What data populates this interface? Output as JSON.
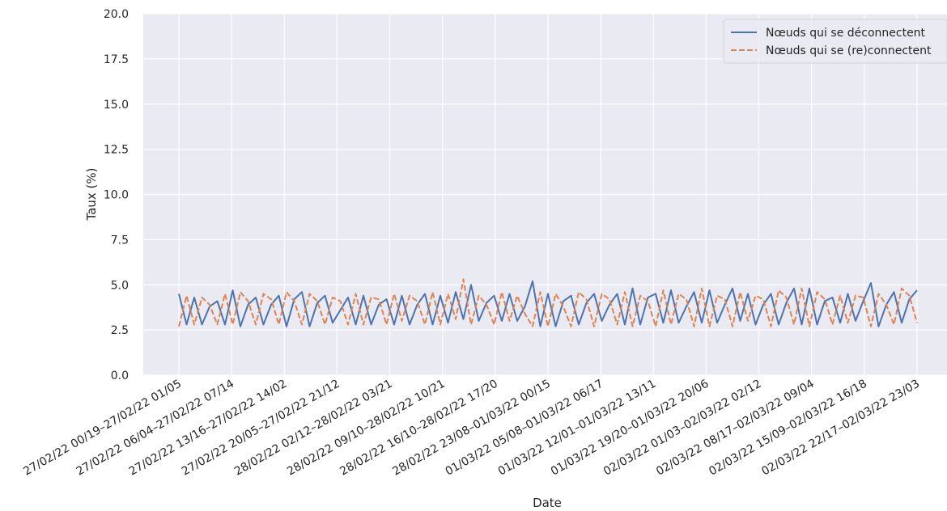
{
  "chart_data": {
    "type": "line",
    "xlabel": "Date",
    "ylabel": "Taux (%)",
    "ylim": [
      0,
      20
    ],
    "yticks": [
      "0.0",
      "2.5",
      "5.0",
      "7.5",
      "10.0",
      "12.5",
      "15.0",
      "17.5",
      "20.0"
    ],
    "grid": true,
    "legend_position": "top-right",
    "x_tick_labels": [
      "27/02/22 00/19–27/02/22 01/05",
      "27/02/22 06/04–27/02/22 07/14",
      "27/02/22 13/16–27/02/22 14/02",
      "27/02/22 20/05–27/02/22 21/12",
      "28/02/22 02/12–28/02/22 03/21",
      "28/02/22 09/10–28/02/22 10/21",
      "28/02/22 16/10–28/02/22 17/20",
      "28/02/22 23/08–01/03/22 00/15",
      "01/03/22 05/08–01/03/22 06/17",
      "01/03/22 12/01–01/03/22 13/11",
      "01/03/22 19/20–01/03/22 20/06",
      "02/03/22 01/03–02/03/22 02/12",
      "02/03/22 08/17–02/03/22 09/04",
      "02/03/22 15/09–02/03/22 16/18",
      "02/03/22 22/17–02/03/22 23/03"
    ],
    "series": [
      {
        "name": "Nœuds qui se déconnectent",
        "color": "#4c72b0",
        "dash": "solid",
        "values": [
          4.5,
          2.8,
          4.3,
          2.8,
          3.8,
          4.1,
          2.8,
          4.7,
          2.7,
          3.9,
          4.3,
          2.8,
          3.9,
          4.4,
          2.7,
          4.2,
          4.6,
          2.7,
          4.0,
          4.4,
          2.9,
          3.6,
          4.3,
          2.8,
          4.4,
          2.8,
          3.9,
          4.2,
          2.8,
          4.4,
          2.8,
          3.9,
          4.5,
          2.8,
          4.4,
          2.9,
          4.6,
          3.1,
          5.0,
          3.0,
          4.0,
          4.4,
          3.0,
          4.5,
          3.0,
          3.8,
          5.2,
          2.7,
          4.5,
          2.7,
          4.1,
          4.4,
          2.8,
          4.0,
          4.5,
          3.0,
          3.9,
          4.5,
          2.8,
          4.8,
          2.8,
          4.3,
          4.5,
          2.9,
          4.7,
          2.9,
          3.8,
          4.6,
          2.9,
          4.7,
          2.9,
          3.9,
          4.8,
          3.0,
          4.5,
          2.8,
          3.9,
          4.5,
          2.8,
          4.0,
          4.8,
          2.8,
          4.8,
          2.8,
          4.1,
          4.3,
          2.9,
          4.5,
          3.0,
          4.1,
          5.1,
          2.7,
          3.9,
          4.6,
          2.9,
          4.2,
          4.7
        ]
      },
      {
        "name": "Nœuds qui se (re)connectent",
        "color": "#dd8452",
        "dash": "dashed",
        "values": [
          2.7,
          4.4,
          2.8,
          4.3,
          3.9,
          2.8,
          4.5,
          2.8,
          4.6,
          4.1,
          2.8,
          4.5,
          4.2,
          2.8,
          4.6,
          4.1,
          2.8,
          4.5,
          4.1,
          2.8,
          4.3,
          4.1,
          2.8,
          4.5,
          2.8,
          4.3,
          4.2,
          2.8,
          4.5,
          3.0,
          4.4,
          4.1,
          2.8,
          4.6,
          2.8,
          4.5,
          3.1,
          5.3,
          2.8,
          4.4,
          3.9,
          2.8,
          4.6,
          3.0,
          4.4,
          3.4,
          2.7,
          4.6,
          2.7,
          4.5,
          3.8,
          2.7,
          4.6,
          4.2,
          2.7,
          4.5,
          4.2,
          2.8,
          4.6,
          2.7,
          4.4,
          4.1,
          2.7,
          4.7,
          2.8,
          4.5,
          4.2,
          2.7,
          4.8,
          2.7,
          4.4,
          4.2,
          2.7,
          4.6,
          3.0,
          4.4,
          4.2,
          2.7,
          4.7,
          4.3,
          2.8,
          4.8,
          2.7,
          4.6,
          4.2,
          2.8,
          4.4,
          2.9,
          4.4,
          4.3,
          2.7,
          4.5,
          3.9,
          2.8,
          4.8,
          4.4,
          2.9
        ]
      }
    ]
  }
}
